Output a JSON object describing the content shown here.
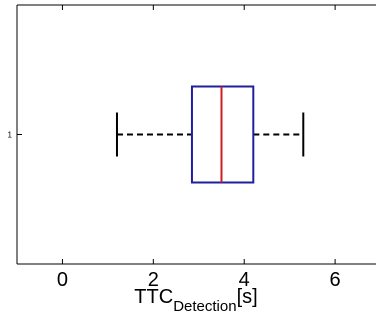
{
  "chart_data": {
    "type": "boxplot",
    "orientation": "horizontal",
    "categories": [
      "1"
    ],
    "boxes": [
      {
        "label": "1",
        "whisker_low": 1.2,
        "q1": 2.85,
        "median": 3.5,
        "q3": 4.2,
        "whisker_high": 5.3
      }
    ],
    "xlim": [
      -1,
      6.9
    ],
    "xticks": [
      0,
      2,
      4,
      6
    ],
    "xlabel": {
      "main": "TTC",
      "sub": "Detection",
      "suffix": "[s]"
    },
    "colors": {
      "box": "#1f1fa0",
      "median": "#cc1f1f",
      "whisker": "#000000",
      "axes": "#000000"
    },
    "grid": false
  }
}
